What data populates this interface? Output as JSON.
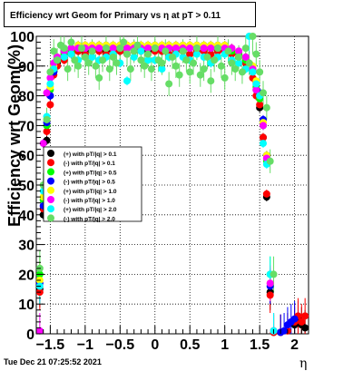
{
  "title": "Efficiency wrt Geom for Primary vs  η at pT > 0.11",
  "timestamp": "Tue Dec 21 07:25:52 2021",
  "chart_data": {
    "type": "scatter",
    "title": "Efficiency wrt Geom for Primary vs  η at pT > 0.11",
    "xlabel": "η",
    "ylabel": "Efficiency wrt Geom(%)",
    "xlim": [
      -1.7,
      2.2
    ],
    "ylim": [
      0,
      100
    ],
    "x_ticks": [
      "−1.5",
      "−1",
      "−0.5",
      "0",
      "0.5",
      "1",
      "1.5",
      "2"
    ],
    "y_ticks": [
      "0",
      "10",
      "20",
      "30",
      "40",
      "50",
      "60",
      "70",
      "80",
      "90",
      "100"
    ],
    "grid": true,
    "legend_position": "center-left",
    "series": [
      {
        "name": "(+) with pT/|q| > 0.1",
        "color": "#000000",
        "x": [
          -1.65,
          -1.6,
          -1.55,
          -1.5,
          -1.45,
          -1.4,
          -1.3,
          -1.2,
          -1.1,
          -1.0,
          -0.9,
          -0.8,
          -0.7,
          -0.6,
          -0.5,
          -0.4,
          -0.3,
          -0.2,
          -0.1,
          0.0,
          0.1,
          0.2,
          0.3,
          0.4,
          0.5,
          0.6,
          0.7,
          0.8,
          0.9,
          1.0,
          1.1,
          1.2,
          1.3,
          1.4,
          1.45,
          1.5,
          1.55,
          1.6,
          1.65,
          1.7,
          1.8,
          1.9,
          2.0,
          2.05,
          2.1,
          2.15
        ],
        "y": [
          15,
          40,
          65,
          80,
          88,
          91,
          93,
          94,
          95,
          95,
          95,
          96,
          95,
          96,
          95,
          96,
          95,
          96,
          95,
          96,
          95,
          96,
          95,
          95,
          96,
          95,
          95,
          96,
          95,
          95,
          95,
          94,
          92,
          88,
          82,
          76,
          66,
          46,
          14,
          0.5,
          0.5,
          1,
          3,
          5,
          3,
          2
        ]
      },
      {
        "name": "(-) with pT/|q| > 0.1",
        "color": "#ff0000",
        "x": [
          -1.65,
          -1.6,
          -1.55,
          -1.5,
          -1.45,
          -1.4,
          -1.3,
          -1.2,
          -1.1,
          -1.0,
          -0.9,
          -0.8,
          -0.7,
          -0.6,
          -0.5,
          -0.4,
          -0.3,
          -0.2,
          -0.1,
          0.0,
          0.1,
          0.2,
          0.3,
          0.4,
          0.5,
          0.6,
          0.7,
          0.8,
          0.9,
          1.0,
          1.1,
          1.2,
          1.3,
          1.4,
          1.45,
          1.5,
          1.55,
          1.6,
          1.65,
          1.7,
          1.8,
          1.9,
          2.0,
          2.05,
          2.1,
          2.15
        ],
        "y": [
          14,
          42,
          68,
          77,
          87,
          90,
          92,
          94,
          95,
          94,
          95,
          95,
          94,
          95,
          95,
          94,
          95,
          95,
          94,
          95,
          95,
          94,
          95,
          95,
          94,
          95,
          95,
          94,
          95,
          95,
          94,
          93,
          91,
          86,
          80,
          77,
          66,
          47,
          13,
          0.5,
          0.5,
          1,
          4,
          6,
          4,
          6
        ]
      },
      {
        "name": "(+) with pT/|q| > 0.5",
        "color": "#00ff00",
        "x": [
          -1.65,
          -1.6,
          -1.55,
          -1.5,
          -1.45,
          -1.4,
          -1.3,
          -1.2,
          -1.1,
          -1.0,
          -0.9,
          -0.8,
          -0.7,
          -0.6,
          -0.5,
          -0.4,
          -0.3,
          -0.2,
          -0.1,
          0.0,
          0.1,
          0.2,
          0.3,
          0.4,
          0.5,
          0.6,
          0.7,
          0.8,
          0.9,
          1.0,
          1.1,
          1.2,
          1.3,
          1.4,
          1.45,
          1.5,
          1.55,
          1.6,
          1.65,
          1.7
        ],
        "y": [
          20,
          45,
          70,
          82,
          89,
          92,
          94,
          95,
          96,
          96,
          96,
          96,
          96,
          96,
          96,
          96,
          96,
          96,
          96,
          96,
          96,
          96,
          96,
          96,
          96,
          96,
          96,
          96,
          96,
          96,
          95,
          94,
          92,
          89,
          83,
          79,
          70,
          58,
          20,
          1
        ]
      },
      {
        "name": "(-) with pT/|q| > 0.5",
        "color": "#0000ff",
        "x": [
          -1.65,
          -1.6,
          -1.55,
          -1.5,
          -1.45,
          -1.4,
          -1.3,
          -1.2,
          -1.1,
          -1.0,
          -0.9,
          -0.8,
          -0.7,
          -0.6,
          -0.5,
          -0.4,
          -0.3,
          -0.2,
          -0.1,
          0.0,
          0.1,
          0.2,
          0.3,
          0.4,
          0.5,
          0.6,
          0.7,
          0.8,
          0.9,
          1.0,
          1.1,
          1.2,
          1.3,
          1.4,
          1.45,
          1.5,
          1.55,
          1.6,
          1.65,
          1.7,
          1.8,
          1.85,
          1.9,
          1.95,
          2.0
        ],
        "y": [
          17,
          43,
          71,
          80,
          88,
          92,
          95,
          96,
          97,
          97,
          97,
          97,
          97,
          97,
          97,
          97,
          97,
          97,
          97,
          97,
          97,
          97,
          97,
          97,
          97,
          97,
          97,
          97,
          97,
          97,
          96,
          95,
          93,
          89,
          84,
          81,
          72,
          60,
          16,
          1,
          0.5,
          1,
          3,
          4,
          5
        ]
      },
      {
        "name": "(+) with pT/|q| > 1.0",
        "color": "#ffff00",
        "x": [
          -1.65,
          -1.6,
          -1.55,
          -1.5,
          -1.45,
          -1.4,
          -1.3,
          -1.2,
          -1.1,
          -1.0,
          -0.9,
          -0.8,
          -0.7,
          -0.6,
          -0.5,
          -0.4,
          -0.3,
          -0.2,
          -0.1,
          0.0,
          0.1,
          0.2,
          0.3,
          0.4,
          0.5,
          0.6,
          0.7,
          0.8,
          0.9,
          1.0,
          1.1,
          1.2,
          1.3,
          1.4,
          1.45,
          1.5,
          1.55,
          1.6,
          1.65,
          1.7
        ],
        "y": [
          18,
          46,
          72,
          83,
          90,
          93,
          95,
          96,
          97,
          97,
          97,
          97,
          97,
          97,
          97,
          97,
          97,
          97,
          97,
          97,
          97,
          97,
          97,
          97,
          97,
          97,
          97,
          97,
          97,
          97,
          96,
          95,
          93,
          90,
          85,
          80,
          71,
          60,
          17,
          1
        ]
      },
      {
        "name": "(-) with pT/|q| > 1.0",
        "color": "#ff00ff",
        "x": [
          -1.65,
          -1.6,
          -1.55,
          -1.5,
          -1.45,
          -1.4,
          -1.3,
          -1.2,
          -1.1,
          -1.0,
          -0.9,
          -0.8,
          -0.7,
          -0.6,
          -0.5,
          -0.4,
          -0.3,
          -0.2,
          -0.1,
          0.0,
          0.1,
          0.2,
          0.3,
          0.4,
          0.5,
          0.6,
          0.7,
          0.8,
          0.9,
          1.0,
          1.1,
          1.2,
          1.3,
          1.4,
          1.45,
          1.5,
          1.55,
          1.6,
          1.65,
          1.7
        ],
        "y": [
          1,
          64,
          81,
          86,
          91,
          93,
          95,
          96,
          96,
          96,
          96,
          96,
          96,
          96,
          96,
          96,
          96,
          96,
          96,
          96,
          96,
          96,
          96,
          96,
          96,
          96,
          96,
          96,
          96,
          96,
          96,
          95,
          93,
          89,
          82,
          80,
          70,
          59,
          17,
          1
        ]
      },
      {
        "name": "(+) with pT/|q| > 2.0",
        "color": "#00ffff",
        "x": [
          -1.65,
          -1.6,
          -1.55,
          -1.5,
          -1.45,
          -1.4,
          -1.3,
          -1.2,
          -1.1,
          -1.0,
          -0.9,
          -0.8,
          -0.7,
          -0.6,
          -0.5,
          -0.4,
          -0.3,
          -0.2,
          -0.1,
          0.0,
          0.1,
          0.2,
          0.3,
          0.4,
          0.5,
          0.6,
          0.7,
          0.8,
          0.9,
          1.0,
          1.1,
          1.2,
          1.3,
          1.35,
          1.4,
          1.45,
          1.5,
          1.55,
          1.6,
          1.65,
          1.7
        ],
        "y": [
          16,
          48,
          73,
          84,
          89,
          92,
          93,
          94,
          92,
          93,
          93,
          92,
          93,
          94,
          91,
          85,
          93,
          95,
          92,
          92,
          89,
          93,
          94,
          93,
          92,
          94,
          93,
          91,
          93,
          94,
          92,
          91,
          89,
          100,
          88,
          84,
          80,
          64,
          57,
          20,
          1
        ]
      },
      {
        "name": "(-) with pT/|q| > 2.0",
        "color": "#66dd66",
        "x": [
          -1.65,
          -1.6,
          -1.55,
          -1.5,
          -1.45,
          -1.4,
          -1.35,
          -1.3,
          -1.25,
          -1.2,
          -1.15,
          -1.1,
          -1.05,
          -1.0,
          -0.95,
          -0.9,
          -0.85,
          -0.8,
          -0.75,
          -0.7,
          -0.65,
          -0.6,
          -0.55,
          -0.5,
          -0.45,
          -0.4,
          -0.35,
          -0.3,
          -0.25,
          -0.2,
          -0.15,
          -0.1,
          -0.05,
          0.0,
          0.05,
          0.1,
          0.15,
          0.2,
          0.25,
          0.3,
          0.35,
          0.4,
          0.45,
          0.5,
          0.55,
          0.6,
          0.65,
          0.7,
          0.75,
          0.8,
          0.85,
          0.9,
          0.95,
          1.0,
          1.05,
          1.1,
          1.15,
          1.2,
          1.25,
          1.3,
          1.35,
          1.4,
          1.45,
          1.5,
          1.55,
          1.6,
          1.65,
          1.7
        ],
        "y": [
          22,
          50,
          72,
          88,
          95,
          92,
          97,
          96,
          89,
          98,
          92,
          90,
          96,
          93,
          91,
          95,
          90,
          86,
          92,
          96,
          89,
          93,
          91,
          96,
          98,
          94,
          89,
          95,
          97,
          92,
          90,
          94,
          89,
          96,
          92,
          91,
          95,
          84,
          93,
          90,
          87,
          95,
          92,
          88,
          91,
          96,
          87,
          89,
          93,
          85,
          92,
          96,
          90,
          86,
          95,
          91,
          89,
          93,
          88,
          96,
          91,
          100,
          94,
          88,
          81,
          76,
          58,
          20
        ]
      }
    ]
  }
}
